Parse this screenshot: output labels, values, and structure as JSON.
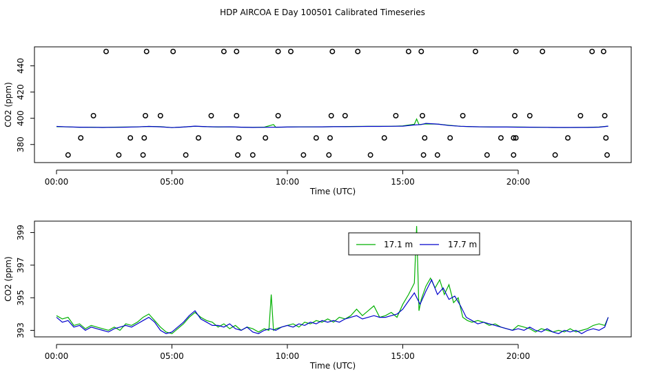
{
  "title": "HDP AIRCOA E  Day 100501  Calibrated Timeseries",
  "colors": {
    "series_a": "#00b000",
    "series_b": "#0000cc",
    "points": "#000000",
    "axes": "#000000"
  },
  "chart_data": [
    {
      "type": "scatter",
      "xlabel": "Time (UTC)",
      "ylabel": "CO2 (ppm)",
      "xlim": [
        0,
        24.8
      ],
      "ylim": [
        366.2,
        454.5
      ],
      "x_ticks": [
        0,
        5,
        10,
        15,
        20
      ],
      "x_tick_labels": [
        "00:00",
        "05:00",
        "10:00",
        "15:00",
        "20:00"
      ],
      "y_ticks": [
        380,
        400,
        420,
        440
      ],
      "y_tick_labels": [
        "380",
        "400",
        "420",
        "440"
      ],
      "grid": false,
      "legend": "none",
      "points": {
        "x": [
          0.5,
          1.05,
          1.6,
          2.15,
          2.7,
          3.2,
          3.75,
          3.8,
          3.85,
          3.9,
          4.5,
          5.05,
          5.6,
          6.15,
          6.7,
          7.25,
          7.8,
          7.8,
          7.85,
          7.9,
          8.5,
          9.05,
          9.6,
          9.6,
          10.15,
          10.7,
          11.25,
          11.8,
          11.85,
          11.9,
          11.95,
          12.5,
          13.05,
          13.6,
          14.2,
          14.7,
          15.25,
          15.8,
          15.85,
          15.9,
          15.95,
          16.5,
          17.05,
          17.6,
          18.15,
          18.65,
          19.25,
          19.8,
          19.8,
          19.85,
          19.9,
          19.9,
          20.5,
          21.05,
          21.6,
          22.15,
          22.7,
          23.2,
          23.7,
          23.75,
          23.8,
          23.85
        ],
        "y": [
          372,
          385,
          402,
          451,
          372,
          385,
          372,
          385,
          402,
          451,
          402,
          451,
          372,
          385,
          402,
          451,
          451,
          402,
          372,
          385,
          372,
          385,
          402,
          451,
          451,
          372,
          385,
          372,
          385,
          402,
          451,
          402,
          451,
          372,
          385,
          402,
          451,
          451,
          402,
          372,
          385,
          372,
          385,
          402,
          451,
          372,
          385,
          372,
          385,
          402,
          451,
          385,
          402,
          451,
          372,
          385,
          402,
          451,
          451,
          402,
          385,
          372
        ]
      },
      "series": [
        {
          "x": [
            0,
            0.5,
            1,
            1.5,
            2,
            2.5,
            3,
            3.5,
            4,
            4.5,
            5,
            5.5,
            6,
            6.5,
            7,
            7.5,
            8,
            8.5,
            9,
            9.4,
            9.5,
            10,
            10.5,
            11,
            11.5,
            12,
            12.5,
            13,
            13.5,
            14,
            14.5,
            15,
            15.5,
            15.6,
            15.7,
            16,
            16.5,
            17,
            17.5,
            18,
            18.5,
            19,
            19.5,
            20,
            20.5,
            21,
            21.5,
            22,
            22.5,
            23,
            23.5,
            23.9
          ],
          "y": [
            393.6,
            393.4,
            393.1,
            393.2,
            393.0,
            393.2,
            393.3,
            393.4,
            393.8,
            393.6,
            392.9,
            393.3,
            393.9,
            393.6,
            393.3,
            393.4,
            393.2,
            393.1,
            393.2,
            395.2,
            393.1,
            393.3,
            393.4,
            393.5,
            393.5,
            393.6,
            393.7,
            393.8,
            393.9,
            393.9,
            393.9,
            394.2,
            395.4,
            399.4,
            395.2,
            395.7,
            395.6,
            394.7,
            393.9,
            393.6,
            393.4,
            393.3,
            393.3,
            393.3,
            393.2,
            393.1,
            393.0,
            392.9,
            393.0,
            393.1,
            393.3,
            394.0
          ]
        },
        {
          "x": [
            0,
            0.5,
            1,
            1.5,
            2,
            2.5,
            3,
            3.5,
            4,
            4.5,
            5,
            5.5,
            6,
            6.5,
            7,
            7.5,
            8,
            8.5,
            9,
            9.5,
            10,
            10.5,
            11,
            11.5,
            12,
            12.5,
            13,
            13.5,
            14,
            14.5,
            15,
            15.5,
            15.8,
            16,
            16.5,
            17,
            17.5,
            18,
            18.5,
            19,
            19.5,
            20,
            20.5,
            21,
            21.5,
            22,
            22.5,
            23,
            23.5,
            23.9
          ],
          "y": [
            393.8,
            393.4,
            393.2,
            393.1,
            393.0,
            393.1,
            393.2,
            393.4,
            393.8,
            393.5,
            392.9,
            393.3,
            394.0,
            393.6,
            393.4,
            393.5,
            393.2,
            393.0,
            393.1,
            393.2,
            393.3,
            393.4,
            393.4,
            393.5,
            393.6,
            393.6,
            393.7,
            393.8,
            393.8,
            393.9,
            394.0,
            394.9,
            395.2,
            396.1,
            395.6,
            394.5,
            393.9,
            393.6,
            393.4,
            393.3,
            393.3,
            393.2,
            393.2,
            393.1,
            393.0,
            393.0,
            393.0,
            393.0,
            393.2,
            394.0
          ]
        }
      ]
    },
    {
      "type": "line",
      "xlabel": "Time (UTC)",
      "ylabel": "CO2 (ppm)",
      "xlim": [
        0,
        24.8
      ],
      "ylim": [
        392.6,
        399.7
      ],
      "x_ticks": [
        0,
        5,
        10,
        15,
        20
      ],
      "x_tick_labels": [
        "00:00",
        "05:00",
        "10:00",
        "15:00",
        "20:00"
      ],
      "y_ticks": [
        393,
        395,
        397,
        399
      ],
      "y_tick_labels": [
        "393",
        "395",
        "397",
        "399"
      ],
      "grid": false,
      "legend": "top-center",
      "series": [
        {
          "name": "17.1 m",
          "x": [
            0,
            0.25,
            0.5,
            0.75,
            1,
            1.25,
            1.5,
            1.75,
            2,
            2.25,
            2.5,
            2.75,
            3,
            3.25,
            3.5,
            3.75,
            4,
            4.25,
            4.5,
            4.75,
            5,
            5.25,
            5.5,
            5.75,
            6,
            6.25,
            6.5,
            6.75,
            7,
            7.25,
            7.5,
            7.75,
            8,
            8.25,
            8.5,
            8.75,
            9,
            9.2,
            9.3,
            9.4,
            9.5,
            9.75,
            10,
            10.25,
            10.5,
            10.75,
            11,
            11.25,
            11.5,
            11.75,
            12,
            12.25,
            12.5,
            12.75,
            13,
            13.25,
            13.5,
            13.75,
            14,
            14.25,
            14.5,
            14.75,
            15,
            15.25,
            15.5,
            15.6,
            15.7,
            15.8,
            16,
            16.2,
            16.4,
            16.6,
            16.8,
            17,
            17.2,
            17.4,
            17.6,
            17.8,
            18,
            18.25,
            18.5,
            18.75,
            19,
            19.25,
            19.5,
            19.75,
            20,
            20.25,
            20.5,
            20.75,
            21,
            21.25,
            21.5,
            21.75,
            22,
            22.25,
            22.5,
            22.75,
            23,
            23.25,
            23.5,
            23.75,
            23.9
          ],
          "y": [
            393.9,
            393.7,
            393.8,
            393.3,
            393.4,
            393.1,
            393.3,
            393.2,
            393.1,
            393.0,
            393.2,
            393.0,
            393.4,
            393.3,
            393.5,
            393.8,
            394.0,
            393.6,
            393.2,
            392.9,
            392.8,
            393.1,
            393.4,
            393.8,
            394.1,
            393.8,
            393.6,
            393.5,
            393.2,
            393.4,
            393.1,
            393.3,
            393.0,
            393.2,
            393.1,
            392.9,
            393.1,
            393.0,
            395.2,
            393.0,
            393.1,
            393.2,
            393.3,
            393.4,
            393.2,
            393.5,
            393.4,
            393.6,
            393.5,
            393.7,
            393.5,
            393.8,
            393.7,
            393.9,
            394.3,
            393.9,
            394.2,
            394.5,
            393.8,
            393.9,
            394.1,
            393.8,
            394.6,
            395.2,
            395.9,
            399.4,
            394.2,
            394.9,
            395.7,
            396.2,
            395.6,
            396.1,
            395.2,
            395.8,
            394.7,
            395.0,
            393.8,
            393.6,
            393.5,
            393.6,
            393.5,
            393.3,
            393.4,
            393.2,
            393.1,
            393.0,
            393.3,
            393.2,
            393.1,
            392.9,
            393.1,
            393.0,
            392.9,
            393.0,
            392.9,
            393.1,
            392.9,
            393.0,
            393.1,
            393.3,
            393.4,
            393.3,
            393.8
          ],
          "color": "#00b000"
        },
        {
          "name": "17.7 m",
          "x": [
            0,
            0.25,
            0.5,
            0.75,
            1,
            1.25,
            1.5,
            1.75,
            2,
            2.25,
            2.5,
            2.75,
            3,
            3.25,
            3.5,
            3.75,
            4,
            4.25,
            4.5,
            4.75,
            5,
            5.25,
            5.5,
            5.75,
            6,
            6.25,
            6.5,
            6.75,
            7,
            7.25,
            7.5,
            7.75,
            8,
            8.25,
            8.5,
            8.75,
            9,
            9.25,
            9.5,
            9.75,
            10,
            10.25,
            10.5,
            10.75,
            11,
            11.25,
            11.5,
            11.75,
            12,
            12.25,
            12.5,
            12.75,
            13,
            13.25,
            13.5,
            13.75,
            14,
            14.25,
            14.5,
            14.75,
            15,
            15.25,
            15.5,
            15.75,
            16,
            16.25,
            16.5,
            16.75,
            17,
            17.25,
            17.5,
            17.75,
            18,
            18.25,
            18.5,
            18.75,
            19,
            19.25,
            19.5,
            19.75,
            20,
            20.25,
            20.5,
            20.75,
            21,
            21.25,
            21.5,
            21.75,
            22,
            22.25,
            22.5,
            22.75,
            23,
            23.25,
            23.5,
            23.75,
            23.9
          ],
          "y": [
            393.8,
            393.5,
            393.6,
            393.2,
            393.3,
            393.0,
            393.2,
            393.1,
            393.0,
            392.9,
            393.1,
            393.2,
            393.3,
            393.2,
            393.4,
            393.6,
            393.8,
            393.5,
            393.0,
            392.8,
            392.9,
            393.2,
            393.5,
            393.9,
            394.2,
            393.7,
            393.5,
            393.3,
            393.3,
            393.2,
            393.4,
            393.1,
            393.0,
            393.2,
            392.9,
            392.8,
            393.0,
            393.1,
            393.0,
            393.2,
            393.3,
            393.2,
            393.4,
            393.3,
            393.5,
            393.4,
            393.6,
            393.5,
            393.6,
            393.5,
            393.7,
            393.8,
            393.9,
            393.7,
            393.8,
            393.9,
            393.8,
            393.8,
            393.9,
            394.0,
            394.3,
            394.8,
            395.3,
            394.6,
            395.4,
            396.1,
            395.2,
            395.6,
            394.9,
            395.1,
            394.5,
            393.8,
            393.6,
            393.4,
            393.5,
            393.4,
            393.3,
            393.2,
            393.1,
            393.0,
            393.1,
            393.0,
            393.2,
            393.0,
            392.9,
            393.1,
            392.9,
            392.8,
            393.0,
            392.9,
            393.0,
            392.8,
            393.0,
            393.1,
            393.0,
            393.2,
            393.8
          ],
          "color": "#0000cc"
        }
      ]
    }
  ]
}
